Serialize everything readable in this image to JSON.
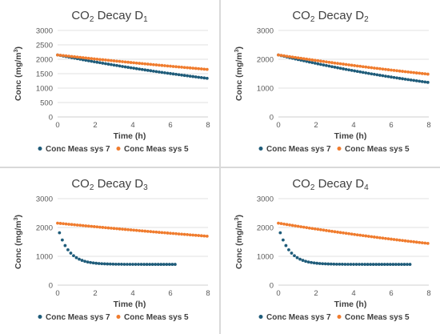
{
  "colors": {
    "sys7": "#1f5c7a",
    "sys5": "#f07c2e",
    "grid": "#d9d9d9",
    "axis": "#bfbfbf"
  },
  "chart_data": [
    {
      "type": "scatter",
      "title_prefix": "CO",
      "title_sub": "2",
      "title_mid": " Decay D",
      "title_sub2": "1",
      "xlabel": "Time (h)",
      "ylabel_prefix": "Conc (mg/m",
      "ylabel_sup": "3",
      "ylabel_suffix": ")",
      "xlim": [
        0,
        8
      ],
      "ylim": [
        0,
        3000
      ],
      "xticks": [
        "0",
        "2",
        "4",
        "6",
        "8"
      ],
      "yticks": [
        "0",
        "500",
        "1000",
        "1500",
        "2000",
        "2500",
        "3000"
      ],
      "yticks_values": [
        0,
        500,
        1000,
        1500,
        2000,
        2500,
        3000
      ],
      "xticks_values": [
        0,
        2,
        4,
        6,
        8
      ],
      "legend_position": "bottom",
      "series": [
        {
          "name": "Conc Meas sys 7",
          "model": "exp",
          "a": 2150,
          "b": 0,
          "k": 0.0595,
          "x_end": 8.0
        },
        {
          "name": "Conc Meas sys 5",
          "model": "exp",
          "a": 2150,
          "b": 0,
          "k": 0.0334,
          "x_end": 8.0
        }
      ]
    },
    {
      "type": "scatter",
      "title_prefix": "CO",
      "title_sub": "2",
      "title_mid": " Decay D",
      "title_sub2": "2",
      "xlabel": "Time (h)",
      "ylabel_prefix": "Conc (mg/m",
      "ylabel_sup": "3",
      "ylabel_suffix": ")",
      "xlim": [
        0,
        8
      ],
      "ylim": [
        0,
        3000
      ],
      "xticks": [
        "0",
        "2",
        "4",
        "6",
        "8"
      ],
      "yticks": [
        "0",
        "1000",
        "2000",
        "3000"
      ],
      "yticks_values": [
        0,
        1000,
        2000,
        3000
      ],
      "xticks_values": [
        0,
        2,
        4,
        6,
        8
      ],
      "legend_position": "bottom",
      "series": [
        {
          "name": "Conc Meas sys 7",
          "model": "exp",
          "a": 2150,
          "b": 0,
          "k": 0.0735,
          "x_end": 8.0
        },
        {
          "name": "Conc Meas sys 5",
          "model": "exp",
          "a": 2150,
          "b": 0,
          "k": 0.0466,
          "x_end": 8.0
        }
      ]
    },
    {
      "type": "scatter",
      "title_prefix": "CO",
      "title_sub": "2",
      "title_mid": " Decay D",
      "title_sub2": "3",
      "xlabel": "Time (h)",
      "ylabel_prefix": "Conc (mg/m",
      "ylabel_sup": "3",
      "ylabel_suffix": ")",
      "xlim": [
        0,
        8
      ],
      "ylim": [
        0,
        3000
      ],
      "xticks": [
        "0",
        "2",
        "4",
        "6",
        "8"
      ],
      "yticks": [
        "0",
        "1000",
        "2000",
        "3000"
      ],
      "yticks_values": [
        0,
        1000,
        2000,
        3000
      ],
      "xticks_values": [
        0,
        2,
        4,
        6,
        8
      ],
      "legend_position": "bottom",
      "series": [
        {
          "name": "Conc Meas sys 7",
          "model": "exp",
          "a": 1300,
          "b": 720,
          "k": 1.72,
          "x_start": 0.1,
          "x_end": 6.3
        },
        {
          "name": "Conc Meas sys 5",
          "model": "exp",
          "a": 2150,
          "b": 0,
          "k": 0.0297,
          "x_end": 8.0
        }
      ]
    },
    {
      "type": "scatter",
      "title_prefix": "CO",
      "title_sub": "2",
      "title_mid": " Decay D",
      "title_sub2": "4",
      "xlabel": "Time (h)",
      "ylabel_prefix": "Conc (mg/m",
      "ylabel_sup": "3",
      "ylabel_suffix": ")",
      "xlim": [
        0,
        8
      ],
      "ylim": [
        0,
        3000
      ],
      "xticks": [
        "0",
        "2",
        "4",
        "6",
        "8"
      ],
      "yticks": [
        "0",
        "1000",
        "2000",
        "3000"
      ],
      "yticks_values": [
        0,
        1000,
        2000,
        3000
      ],
      "xticks_values": [
        0,
        2,
        4,
        6,
        8
      ],
      "legend_position": "bottom",
      "series": [
        {
          "name": "Conc Meas sys 7",
          "model": "exp",
          "a": 1300,
          "b": 720,
          "k": 1.72,
          "x_start": 0.1,
          "x_end": 7.0
        },
        {
          "name": "Conc Meas sys 5",
          "model": "exp",
          "a": 2150,
          "b": 0,
          "k": 0.0498,
          "x_end": 8.0
        }
      ]
    }
  ]
}
